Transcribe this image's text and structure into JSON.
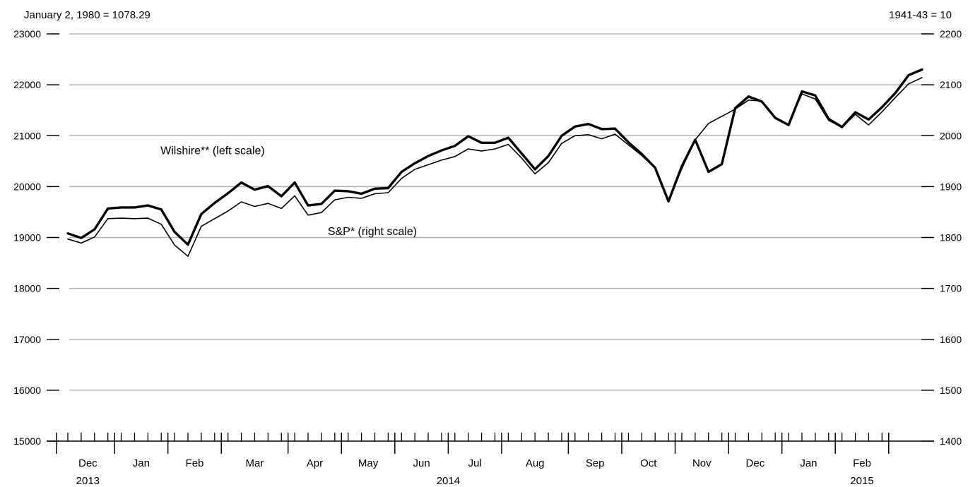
{
  "chart_data": {
    "type": "line",
    "left_axis_note": "January 2, 1980 = 1078.29",
    "right_axis_note": "1941-43 = 10",
    "y_left": {
      "min": 15000,
      "max": 23000,
      "ticks": [
        15000,
        16000,
        17000,
        18000,
        19000,
        20000,
        21000,
        22000,
        23000
      ]
    },
    "y_right": {
      "min": 1400,
      "max": 2200,
      "ticks": [
        1400,
        1500,
        1600,
        1700,
        1800,
        1900,
        2000,
        2100,
        2200
      ]
    },
    "grid": true,
    "months": [
      "Dec",
      "Jan",
      "Feb",
      "Mar",
      "Apr",
      "May",
      "Jun",
      "Jul",
      "Aug",
      "Sep",
      "Oct",
      "Nov",
      "Dec",
      "Jan",
      "Feb"
    ],
    "years": [
      {
        "label": "2013",
        "month_index": 0
      },
      {
        "label": "2014",
        "month_index": 6.5
      },
      {
        "label": "2015",
        "month_index": 14
      }
    ],
    "weeks_per_month": [
      4,
      4,
      4,
      5,
      4,
      4,
      4,
      4,
      5,
      4,
      4,
      4,
      4,
      4,
      4
    ],
    "series": [
      {
        "name": "Wilshire** (left scale)",
        "axis": "left",
        "style": "thick",
        "values": [
          19080,
          18990,
          19160,
          19570,
          19590,
          19590,
          19630,
          19550,
          19110,
          18860,
          19460,
          19680,
          19870,
          20080,
          19940,
          20010,
          19810,
          20080,
          19630,
          19660,
          19920,
          19910,
          19860,
          19960,
          19970,
          20290,
          20460,
          20600,
          20710,
          20800,
          20990,
          20860,
          20860,
          20960,
          20650,
          20340,
          20600,
          21000,
          21180,
          21230,
          21130,
          21140,
          20870,
          20640,
          20370,
          19710,
          20400,
          20920,
          20290,
          20440,
          21540,
          21770,
          21670,
          21350,
          21210,
          21870,
          21790,
          21330,
          21170,
          21460,
          21320,
          21560,
          21840,
          22190,
          22300
        ]
      },
      {
        "name": "S&P* (right scale)",
        "axis": "right",
        "style": "thin",
        "values": [
          1797,
          1789,
          1801,
          1837,
          1838,
          1837,
          1838,
          1826,
          1785,
          1763,
          1822,
          1837,
          1852,
          1870,
          1861,
          1867,
          1857,
          1882,
          1844,
          1849,
          1874,
          1879,
          1877,
          1886,
          1888,
          1916,
          1934,
          1943,
          1952,
          1959,
          1974,
          1970,
          1974,
          1983,
          1956,
          1925,
          1947,
          1985,
          2000,
          2002,
          1994,
          2003,
          1982,
          1961,
          1936,
          1871,
          1935,
          1992,
          2024,
          2038,
          2052,
          2070,
          2068,
          2035,
          2022,
          2082,
          2072,
          2030,
          2016,
          2042,
          2021,
          2047,
          2075,
          2102,
          2114
        ]
      }
    ],
    "annotations": [
      {
        "text": "Wilshire** (left scale)",
        "series": "Wilshire** (left scale)",
        "at_index": 17,
        "above": true
      },
      {
        "text": "S&P* (right scale)",
        "series": "S&P* (right scale)",
        "at_index": 20,
        "above": false
      }
    ]
  }
}
